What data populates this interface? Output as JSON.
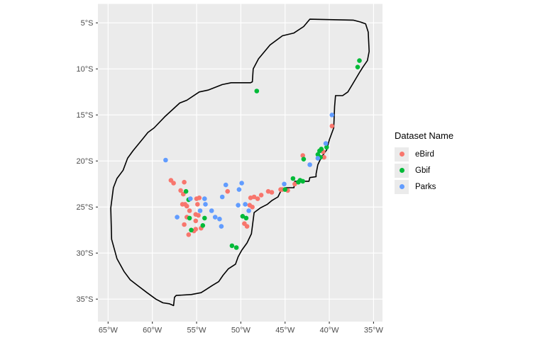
{
  "legend": {
    "title": "Dataset Name",
    "items": [
      {
        "label": "eBird",
        "color": "#F8766D"
      },
      {
        "label": "Gbif",
        "color": "#00BA38"
      },
      {
        "label": "Parks",
        "color": "#619CFF"
      }
    ]
  },
  "style": {
    "panel_bg": "#EBEBEB",
    "grid_color": "#FFFFFF",
    "boundary_color": "#000000",
    "axis_text_color": "#4D4D4D",
    "tick_color": "#333333"
  },
  "chart_data": {
    "type": "scatter",
    "title": "",
    "xlabel": "",
    "ylabel": "",
    "legend_title": "Dataset Name",
    "legend_position": "right",
    "grid": "major-white-on-gray",
    "x_domain": [
      -66.15,
      -33.99
    ],
    "y_domain": [
      -37.44,
      -2.94
    ],
    "x_ticks": {
      "values": [
        -65,
        -60,
        -55,
        -50,
        -45,
        -40,
        -35
      ],
      "labels": [
        "65°W",
        "60°W",
        "55°W",
        "50°W",
        "45°W",
        "40°W",
        "35°W"
      ]
    },
    "y_ticks": {
      "values": [
        -5,
        -10,
        -15,
        -20,
        -25,
        -30,
        -35
      ],
      "labels": [
        "5°S",
        "10°S",
        "15°S",
        "20°S",
        "25°S",
        "30°S",
        "35°S"
      ]
    },
    "boundary": [
      [
        -42.2,
        -4.6
      ],
      [
        -37.3,
        -4.7
      ],
      [
        -36.5,
        -4.9
      ],
      [
        -35.9,
        -5.1
      ],
      [
        -35.6,
        -6.0
      ],
      [
        -35.5,
        -8.1
      ],
      [
        -35.7,
        -9.1
      ],
      [
        -36.2,
        -9.8
      ],
      [
        -36.6,
        -10.4
      ],
      [
        -37.4,
        -11.7
      ],
      [
        -37.9,
        -12.5
      ],
      [
        -38.5,
        -12.9
      ],
      [
        -39.3,
        -12.9
      ],
      [
        -39.4,
        -14.1
      ],
      [
        -39.5,
        -16.4
      ],
      [
        -40.0,
        -17.7
      ],
      [
        -40.3,
        -18.8
      ],
      [
        -40.9,
        -19.6
      ],
      [
        -41.3,
        -20.4
      ],
      [
        -41.5,
        -21.4
      ],
      [
        -41.5,
        -21.7
      ],
      [
        -42.2,
        -21.8
      ],
      [
        -42.3,
        -22.2
      ],
      [
        -43.9,
        -22.2
      ],
      [
        -44.0,
        -22.9
      ],
      [
        -45.0,
        -22.9
      ],
      [
        -45.5,
        -23.3
      ],
      [
        -45.8,
        -23.9
      ],
      [
        -46.5,
        -24.3
      ],
      [
        -47.0,
        -24.7
      ],
      [
        -47.8,
        -25.1
      ],
      [
        -48.5,
        -25.6
      ],
      [
        -48.8,
        -27.9
      ],
      [
        -49.3,
        -28.9
      ],
      [
        -49.9,
        -29.7
      ],
      [
        -50.3,
        -30.4
      ],
      [
        -50.6,
        -31.2
      ],
      [
        -51.4,
        -31.7
      ],
      [
        -52.0,
        -32.4
      ],
      [
        -52.5,
        -33.1
      ],
      [
        -53.2,
        -33.5
      ],
      [
        -54.0,
        -34.0
      ],
      [
        -54.5,
        -34.3
      ],
      [
        -55.6,
        -34.5
      ],
      [
        -57.3,
        -34.6
      ],
      [
        -57.5,
        -34.8
      ],
      [
        -57.6,
        -35.7
      ],
      [
        -58.1,
        -35.5
      ],
      [
        -58.8,
        -35.4
      ],
      [
        -59.6,
        -35.0
      ],
      [
        -60.6,
        -34.3
      ],
      [
        -61.7,
        -33.5
      ],
      [
        -62.5,
        -32.9
      ],
      [
        -63.2,
        -32.0
      ],
      [
        -64.0,
        -30.6
      ],
      [
        -64.6,
        -28.5
      ],
      [
        -64.7,
        -25.1
      ],
      [
        -64.4,
        -22.9
      ],
      [
        -64.0,
        -21.9
      ],
      [
        -63.3,
        -21.0
      ],
      [
        -62.8,
        -19.7
      ],
      [
        -62.2,
        -18.9
      ],
      [
        -61.0,
        -17.5
      ],
      [
        -60.5,
        -16.9
      ],
      [
        -59.8,
        -16.4
      ],
      [
        -58.6,
        -15.2
      ],
      [
        -57.7,
        -14.4
      ],
      [
        -56.9,
        -13.7
      ],
      [
        -56.1,
        -13.4
      ],
      [
        -54.7,
        -12.5
      ],
      [
        -53.7,
        -12.3
      ],
      [
        -52.1,
        -11.7
      ],
      [
        -51.1,
        -11.5
      ],
      [
        -48.9,
        -11.5
      ],
      [
        -48.7,
        -11.4
      ],
      [
        -48.6,
        -10.0
      ],
      [
        -48.0,
        -8.9
      ],
      [
        -46.7,
        -7.4
      ],
      [
        -45.3,
        -6.4
      ],
      [
        -44.0,
        -6.1
      ],
      [
        -42.9,
        -5.4
      ]
    ],
    "series": [
      {
        "name": "eBird",
        "color": "#F8766D",
        "points": [
          [
            -57.9,
            -22.1
          ],
          [
            -57.6,
            -22.4
          ],
          [
            -56.4,
            -22.3
          ],
          [
            -56.8,
            -23.2
          ],
          [
            -56.5,
            -23.6
          ],
          [
            -55.0,
            -24.1
          ],
          [
            -54.7,
            -24.0
          ],
          [
            -56.6,
            -24.7
          ],
          [
            -56.3,
            -24.7
          ],
          [
            -56.1,
            -24.9
          ],
          [
            -54.9,
            -24.7
          ],
          [
            -55.8,
            -25.4
          ],
          [
            -56.1,
            -26.1
          ],
          [
            -55.1,
            -25.8
          ],
          [
            -54.8,
            -25.9
          ],
          [
            -56.4,
            -26.9
          ],
          [
            -55.1,
            -26.5
          ],
          [
            -55.3,
            -27.6
          ],
          [
            -55.9,
            -28.0
          ],
          [
            -55.1,
            -27.4
          ],
          [
            -54.5,
            -27.3
          ],
          [
            -51.5,
            -23.3
          ],
          [
            -48.9,
            -24.0
          ],
          [
            -48.5,
            -23.9
          ],
          [
            -48.1,
            -24.1
          ],
          [
            -47.7,
            -23.7
          ],
          [
            -46.9,
            -23.3
          ],
          [
            -46.5,
            -23.4
          ],
          [
            -49.0,
            -24.8
          ],
          [
            -48.7,
            -25.0
          ],
          [
            -49.6,
            -26.8
          ],
          [
            -49.3,
            -27.1
          ],
          [
            -45.5,
            -23.1
          ],
          [
            -45.3,
            -23.1
          ],
          [
            -44.7,
            -23.2
          ],
          [
            -43.9,
            -22.5
          ],
          [
            -43.0,
            -19.4
          ],
          [
            -40.7,
            -19.0
          ],
          [
            -40.6,
            -19.6
          ],
          [
            -39.7,
            -16.2
          ]
        ]
      },
      {
        "name": "Gbif",
        "color": "#00BA38",
        "points": [
          [
            -56.2,
            -23.3
          ],
          [
            -55.9,
            -24.2
          ],
          [
            -55.8,
            -26.2
          ],
          [
            -54.1,
            -26.2
          ],
          [
            -54.3,
            -27.0
          ],
          [
            -55.6,
            -27.5
          ],
          [
            -49.8,
            -26.0
          ],
          [
            -49.4,
            -26.2
          ],
          [
            -51.0,
            -29.2
          ],
          [
            -50.5,
            -29.4
          ],
          [
            -48.2,
            -12.4
          ],
          [
            -45.0,
            -23.1
          ],
          [
            -44.1,
            -21.9
          ],
          [
            -43.5,
            -22.3
          ],
          [
            -43.3,
            -22.1
          ],
          [
            -43.0,
            -22.2
          ],
          [
            -42.9,
            -19.8
          ],
          [
            -41.3,
            -19.3
          ],
          [
            -41.1,
            -18.9
          ],
          [
            -41.0,
            -19.6
          ],
          [
            -40.9,
            -18.7
          ],
          [
            -40.3,
            -18.5
          ],
          [
            -36.8,
            -9.8
          ],
          [
            -36.6,
            -9.1
          ]
        ]
      },
      {
        "name": "Parks",
        "color": "#619CFF",
        "points": [
          [
            -58.5,
            -19.9
          ],
          [
            -57.2,
            -26.1
          ],
          [
            -55.7,
            -24.1
          ],
          [
            -54.1,
            -24.1
          ],
          [
            -54.0,
            -24.7
          ],
          [
            -54.6,
            -25.4
          ],
          [
            -53.3,
            -25.4
          ],
          [
            -52.9,
            -26.1
          ],
          [
            -52.4,
            -26.3
          ],
          [
            -52.2,
            -27.1
          ],
          [
            -52.1,
            -23.9
          ],
          [
            -51.7,
            -22.6
          ],
          [
            -50.3,
            -24.8
          ],
          [
            -50.2,
            -23.1
          ],
          [
            -49.9,
            -22.4
          ],
          [
            -49.5,
            -24.7
          ],
          [
            -49.1,
            -25.4
          ],
          [
            -45.1,
            -22.5
          ],
          [
            -42.2,
            -20.4
          ],
          [
            -41.3,
            -19.7
          ],
          [
            -40.4,
            -18.1
          ],
          [
            -39.7,
            -15.0
          ]
        ]
      }
    ]
  }
}
